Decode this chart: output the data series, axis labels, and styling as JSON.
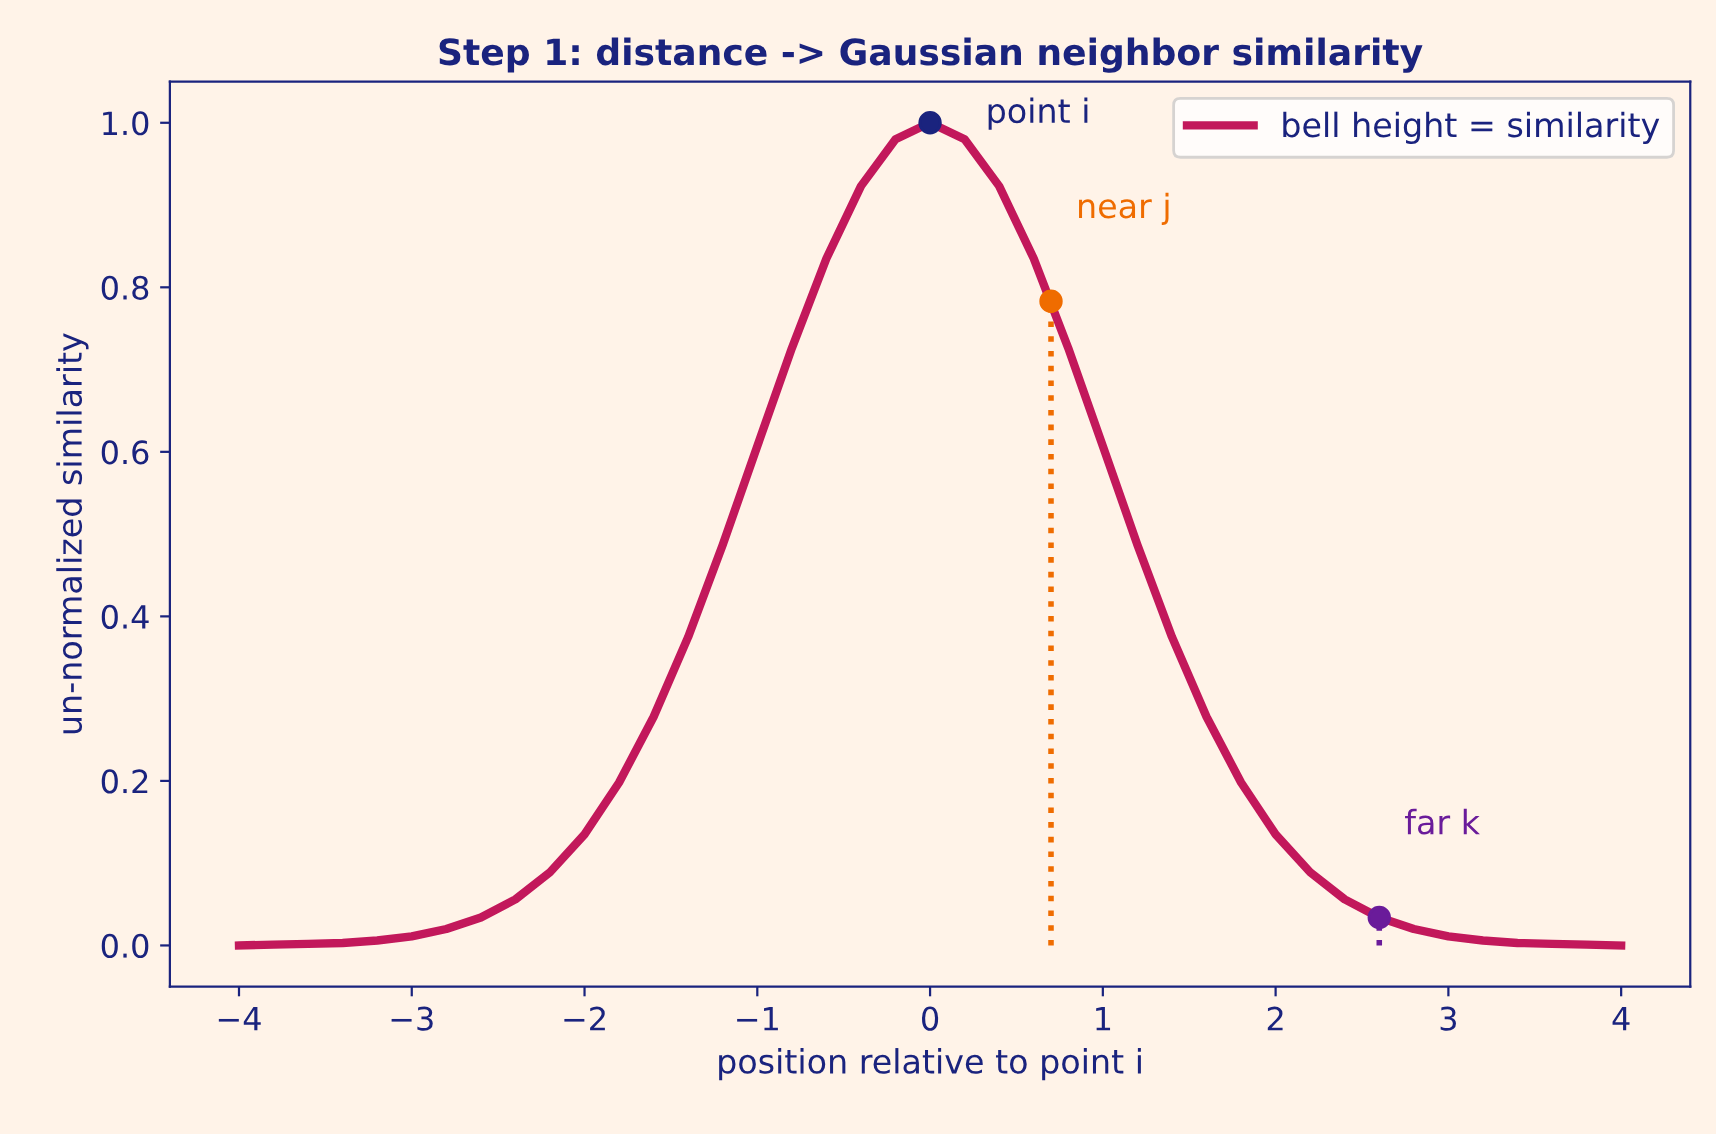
{
  "chart_data": {
    "type": "line",
    "title": "Step 1: distance -> Gaussian neighbor similarity",
    "xlabel": "position relative to point i",
    "ylabel": "un-normalized similarity",
    "xlim": [
      -4.4,
      4.4
    ],
    "ylim": [
      -0.05,
      1.05
    ],
    "xticks": [
      {
        "value": -4,
        "label": "−4"
      },
      {
        "value": -3,
        "label": "−3"
      },
      {
        "value": -2,
        "label": "−2"
      },
      {
        "value": -1,
        "label": "−1"
      },
      0,
      1,
      2,
      3,
      4
    ],
    "yticks": [
      {
        "value": 0,
        "label": "0.0"
      },
      {
        "value": 0.2,
        "label": "0.2"
      },
      {
        "value": 0.4,
        "label": "0.4"
      },
      {
        "value": 0.6,
        "label": "0.6"
      },
      {
        "value": 0.8,
        "label": "0.8"
      },
      {
        "value": 1,
        "label": "1.0"
      }
    ],
    "legend": "top right",
    "grid": false,
    "series": [
      {
        "name": "bell height = similarity",
        "color": "#c2185b",
        "line_style": "solid",
        "x": [
          -4.0,
          -3.8,
          -3.6,
          -3.4,
          -3.2,
          -3.0,
          -2.8,
          -2.6,
          -2.4,
          -2.2,
          -2.0,
          -1.8,
          -1.6,
          -1.4,
          -1.2,
          -1.0,
          -0.8,
          -0.6,
          -0.4,
          -0.2,
          0.0,
          0.2,
          0.4,
          0.6,
          0.8,
          1.0,
          1.2,
          1.4,
          1.6,
          1.8,
          2.0,
          2.2,
          2.4,
          2.6,
          2.8,
          3.0,
          3.2,
          3.4,
          3.6,
          3.8,
          4.0
        ],
        "values": [
          0.0,
          0.001,
          0.002,
          0.003,
          0.006,
          0.011,
          0.02,
          0.034,
          0.056,
          0.089,
          0.135,
          0.198,
          0.278,
          0.375,
          0.487,
          0.607,
          0.726,
          0.835,
          0.923,
          0.98,
          1.0,
          0.98,
          0.923,
          0.835,
          0.726,
          0.607,
          0.487,
          0.375,
          0.278,
          0.198,
          0.135,
          0.089,
          0.056,
          0.034,
          0.02,
          0.011,
          0.006,
          0.003,
          0.002,
          0.001,
          0.0
        ]
      },
      {
        "type": "line",
        "color": "#ef6c00",
        "line_style": "dotted",
        "x": [
          0.7,
          0.7
        ],
        "values": [
          0,
          0.783
        ]
      },
      {
        "type": "line",
        "color": "#6a1b9a",
        "line_style": "dotted",
        "x": [
          2.6,
          2.6
        ],
        "values": [
          0,
          0.034
        ]
      },
      {
        "type": "scatter",
        "color": "#1a237e",
        "marker": "circle",
        "x": [
          0
        ],
        "values": [
          1.0
        ]
      },
      {
        "type": "scatter",
        "color": "#ef6c00",
        "marker": "circle",
        "x": [
          0.7
        ],
        "values": [
          0.783
        ]
      },
      {
        "type": "scatter",
        "color": "#6a1b9a",
        "marker": "circle",
        "x": [
          2.6
        ],
        "values": [
          0.034
        ]
      }
    ],
    "annotations": [
      {
        "text": "point i",
        "x": 0,
        "y": 1.0
      },
      {
        "text": "near j",
        "x": 0.7,
        "y": 0.783
      },
      {
        "text": "far k",
        "x": 2.6,
        "y": 0.034
      }
    ]
  }
}
